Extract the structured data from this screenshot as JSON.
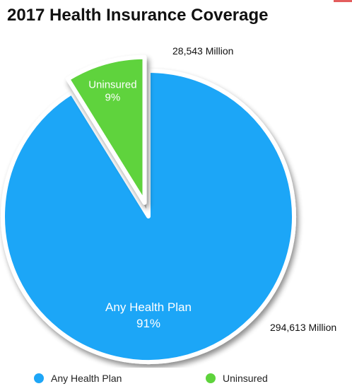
{
  "chart_data": {
    "type": "pie",
    "title": "2017 Health Insurance Coverage",
    "slices": [
      {
        "label": "Any Health Plan",
        "percent_label": "91%",
        "value": 294.613,
        "value_label": "294,613 Million",
        "color": "#1ea6f7"
      },
      {
        "label": "Uninsured",
        "percent_label": "9%",
        "value": 28.543,
        "value_label": "28,543 Million",
        "color": "#5ed33c"
      }
    ],
    "exploded": [
      "Uninsured"
    ],
    "legend_position": "bottom"
  }
}
